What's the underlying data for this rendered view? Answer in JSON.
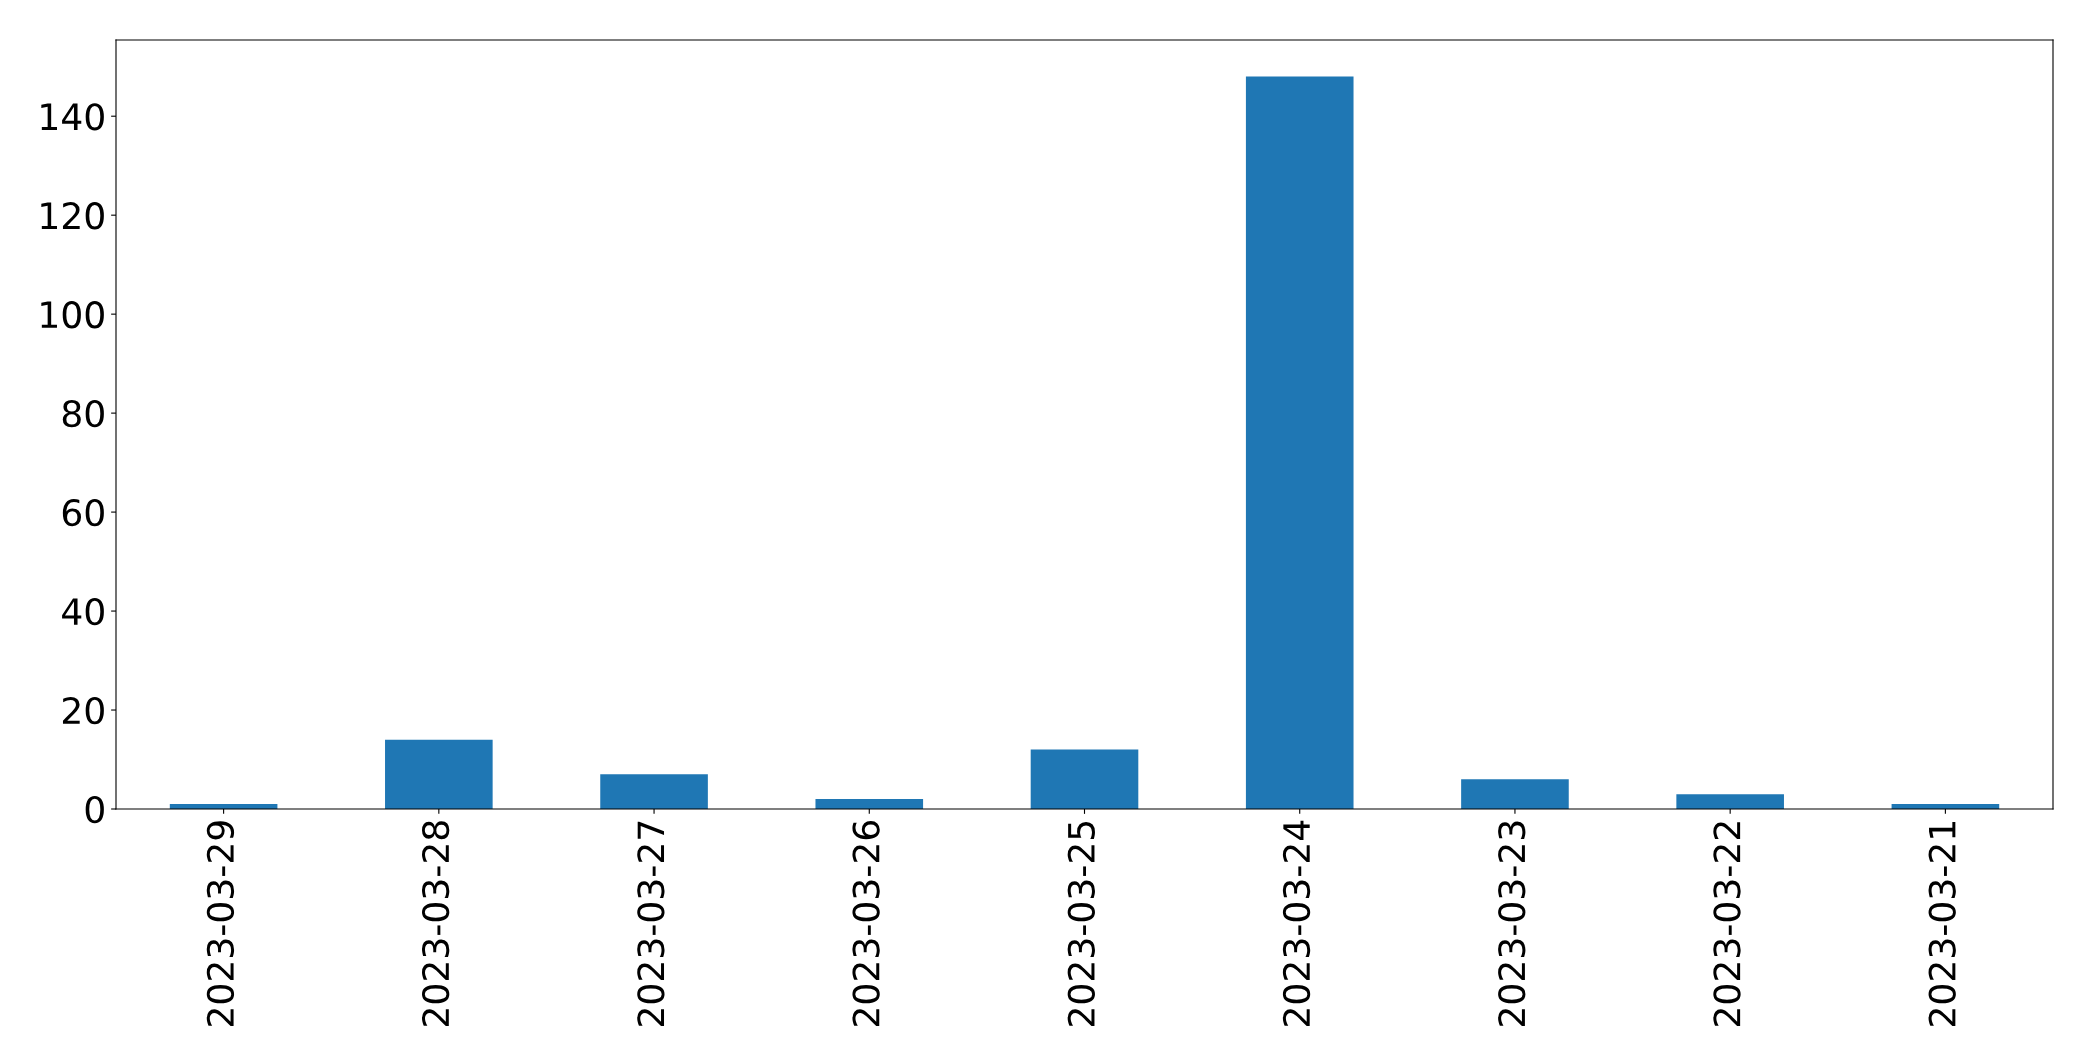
{
  "chart_data": {
    "type": "bar",
    "categories": [
      "2023-03-29",
      "2023-03-28",
      "2023-03-27",
      "2023-03-26",
      "2023-03-25",
      "2023-03-24",
      "2023-03-23",
      "2023-03-22",
      "2023-03-21"
    ],
    "values": [
      1,
      14,
      7,
      2,
      12,
      148,
      6,
      3,
      1
    ],
    "color": "#1f77b4",
    "ylim": [
      0,
      155.4
    ],
    "yticks": [
      0,
      20,
      40,
      60,
      80,
      100,
      120,
      140
    ],
    "grid": false
  }
}
